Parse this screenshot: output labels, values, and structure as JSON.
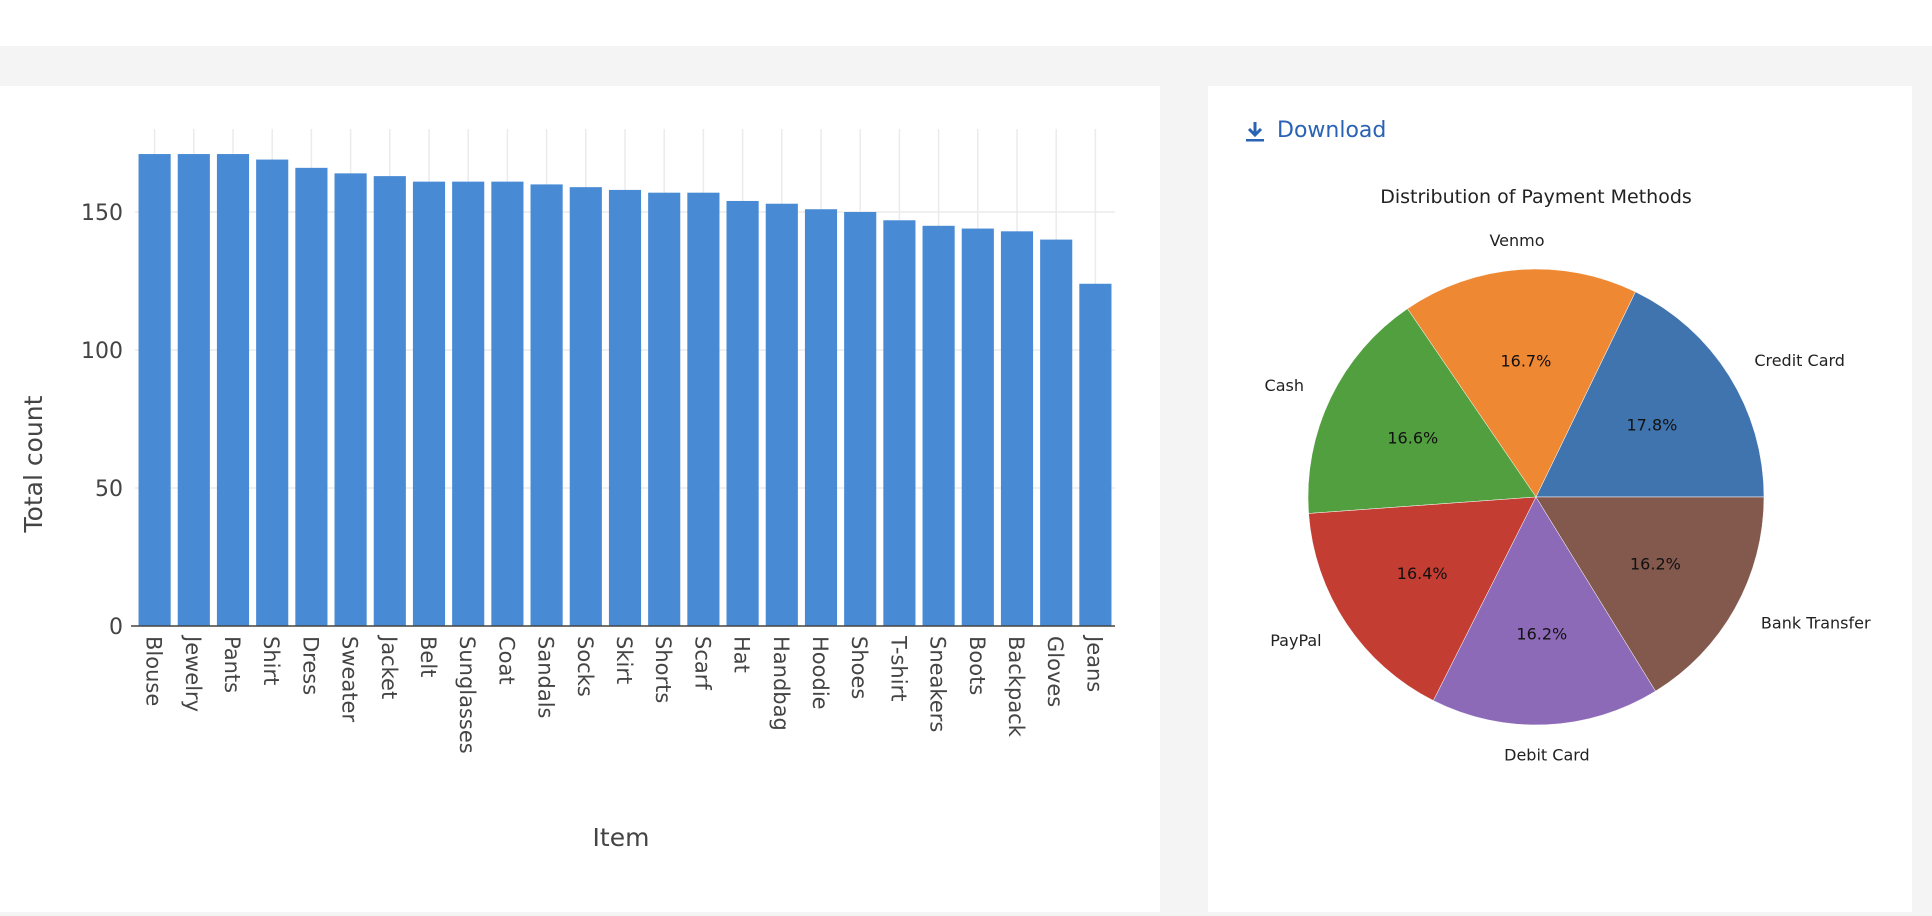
{
  "download_label": "Download",
  "chart_data": [
    {
      "type": "bar",
      "title": "",
      "xlabel": "Item",
      "ylabel": "Total count",
      "ylim": [
        0,
        180
      ],
      "yticks": [
        0,
        50,
        100,
        150
      ],
      "grid": true,
      "color": "#488bd4",
      "categories": [
        "Blouse",
        "Jewelry",
        "Pants",
        "Shirt",
        "Dress",
        "Sweater",
        "Jacket",
        "Belt",
        "Sunglasses",
        "Coat",
        "Sandals",
        "Socks",
        "Skirt",
        "Shorts",
        "Scarf",
        "Hat",
        "Handbag",
        "Hoodie",
        "Shoes",
        "T-shirt",
        "Sneakers",
        "Boots",
        "Backpack",
        "Gloves",
        "Jeans"
      ],
      "values": [
        171,
        171,
        171,
        169,
        166,
        164,
        163,
        161,
        161,
        161,
        160,
        159,
        158,
        157,
        157,
        154,
        153,
        151,
        150,
        147,
        145,
        144,
        143,
        140,
        124
      ]
    },
    {
      "type": "pie",
      "title": "Distribution of Payment Methods",
      "labels": [
        "Credit Card",
        "Venmo",
        "Cash",
        "PayPal",
        "Debit Card",
        "Bank Transfer"
      ],
      "values": [
        17.8,
        16.7,
        16.6,
        16.4,
        16.2,
        16.2
      ],
      "value_labels": [
        "17.8%",
        "16.7%",
        "16.6%",
        "16.4%",
        "16.2%",
        "16.2%"
      ],
      "colors": [
        "#4074ae",
        "#ee8833",
        "#529f3f",
        "#c43d32",
        "#8d6ab7",
        "#83594e"
      ]
    }
  ]
}
